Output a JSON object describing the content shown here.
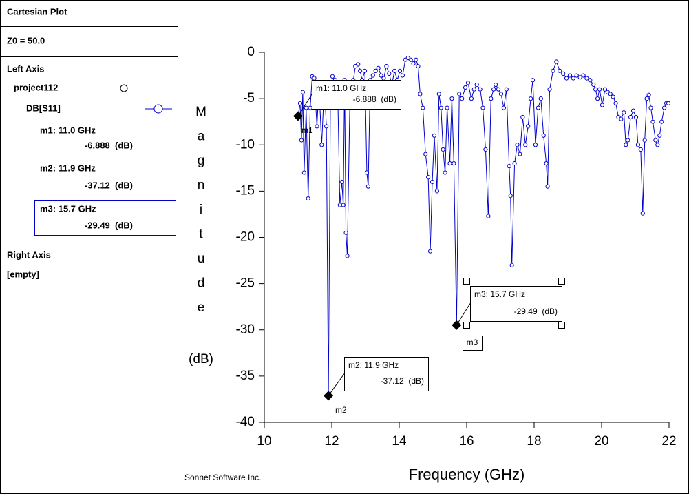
{
  "panel": {
    "title": "Cartesian Plot",
    "z0": "Z0 = 50.0",
    "left_axis": "Left Axis",
    "project": "project112",
    "trace": "DB[S11]",
    "right_axis": "Right Axis",
    "right_empty": "[empty]"
  },
  "footer": "Sonnet Software Inc.",
  "chart_data": {
    "type": "line",
    "x_label": "Frequency (GHz)",
    "y_label": "Magnitude",
    "y_unit": "(dB)",
    "xlim": [
      10,
      22
    ],
    "xticks": [
      10,
      12,
      14,
      16,
      18,
      20,
      22
    ],
    "ylim": [
      -40,
      0
    ],
    "yticks": [
      0,
      -5,
      -10,
      -15,
      -20,
      -25,
      -30,
      -35,
      -40
    ],
    "series": [
      {
        "name": "DB[S11]",
        "color": "#0000cc",
        "x": [
          11.0,
          11.06,
          11.1,
          11.14,
          11.18,
          11.24,
          11.3,
          11.36,
          11.42,
          11.48,
          11.56,
          11.62,
          11.7,
          11.78,
          11.84,
          11.9,
          11.96,
          12.02,
          12.1,
          12.18,
          12.24,
          12.3,
          12.34,
          12.38,
          12.42,
          12.46,
          12.54,
          12.64,
          12.7,
          12.78,
          12.84,
          12.9,
          12.98,
          13.04,
          13.08,
          13.14,
          13.22,
          13.3,
          13.38,
          13.46,
          13.54,
          13.62,
          13.7,
          13.78,
          13.86,
          13.94,
          14.02,
          14.1,
          14.18,
          14.26,
          14.34,
          14.42,
          14.5,
          14.56,
          14.62,
          14.7,
          14.78,
          14.86,
          14.92,
          14.98,
          15.04,
          15.12,
          15.18,
          15.24,
          15.3,
          15.36,
          15.42,
          15.5,
          15.56,
          15.62,
          15.7,
          15.78,
          15.86,
          15.96,
          16.04,
          16.14,
          16.22,
          16.3,
          16.4,
          16.48,
          16.56,
          16.64,
          16.72,
          16.8,
          16.86,
          16.94,
          17.02,
          17.1,
          17.18,
          17.26,
          17.3,
          17.34,
          17.42,
          17.5,
          17.58,
          17.66,
          17.74,
          17.82,
          17.9,
          17.96,
          18.04,
          18.12,
          18.2,
          18.28,
          18.36,
          18.4,
          18.46,
          18.56,
          18.66,
          18.76,
          18.86,
          18.96,
          19.06,
          19.16,
          19.26,
          19.36,
          19.46,
          19.56,
          19.66,
          19.76,
          19.82,
          19.88,
          19.94,
          20.02,
          20.1,
          20.18,
          20.26,
          20.34,
          20.42,
          20.5,
          20.58,
          20.66,
          20.72,
          20.78,
          20.86,
          20.94,
          21.02,
          21.08,
          21.16,
          21.22,
          21.28,
          21.34,
          21.4,
          21.46,
          21.52,
          21.6,
          21.66,
          21.72,
          21.78,
          21.86,
          21.92,
          21.98
        ],
        "values": [
          -6.888,
          -5.5,
          -9.5,
          -4.3,
          -13,
          -6,
          -15.8,
          -6,
          -2.6,
          -2.8,
          -8,
          -3.5,
          -10,
          -3.5,
          -8,
          -37.12,
          -5,
          -2.6,
          -3,
          -5,
          -16.5,
          -14,
          -16.5,
          -3,
          -19.5,
          -22,
          -4.5,
          -3,
          -1.5,
          -1.3,
          -2,
          -3,
          -2,
          -13,
          -14.5,
          -3,
          -2.5,
          -2,
          -1.7,
          -2.5,
          -2.8,
          -1.5,
          -2.3,
          -3.5,
          -2,
          -3,
          -2,
          -2.5,
          -0.8,
          -0.6,
          -0.8,
          -1.2,
          -0.8,
          -1.5,
          -4.5,
          -6,
          -11,
          -13.5,
          -21.5,
          -14,
          -9,
          -15,
          -4.5,
          -6,
          -10.5,
          -13,
          -6,
          -12,
          -5,
          -12,
          -29.49,
          -4.5,
          -5,
          -3.8,
          -3.3,
          -5,
          -4,
          -3.5,
          -4,
          -6,
          -10.5,
          -17.7,
          -5,
          -4,
          -3.5,
          -4,
          -4.5,
          -6,
          -4,
          -12.3,
          -15.5,
          -23,
          -12,
          -10,
          -11,
          -7,
          -10,
          -8,
          -5,
          -3,
          -10,
          -6,
          -5,
          -9,
          -12,
          -14.5,
          -4,
          -2,
          -1,
          -2,
          -2.3,
          -2.8,
          -2.5,
          -2.8,
          -2.5,
          -2.7,
          -2.5,
          -2.8,
          -3,
          -3.5,
          -4,
          -5,
          -4,
          -5.7,
          -4,
          -4.3,
          -4.5,
          -4.8,
          -5.5,
          -7,
          -7.2,
          -6.5,
          -10,
          -9.5,
          -7,
          -6.3,
          -7,
          -10,
          -10.5,
          -17.4,
          -9.5,
          -5,
          -4.6,
          -6,
          -7.5,
          -9.5,
          -10,
          -9,
          -7.5,
          -6,
          -5.5,
          -5.5
        ]
      }
    ],
    "markers": [
      {
        "name": "m1",
        "label": "m1: 11.0 GHz",
        "value_label": "-6.888  (dB)",
        "x": 11.0,
        "y": -6.888
      },
      {
        "name": "m2",
        "label": "m2: 11.9 GHz",
        "value_label": "-37.12  (dB)",
        "x": 11.9,
        "y": -37.12
      },
      {
        "name": "m3",
        "label": "m3: 15.7 GHz",
        "value_label": "-29.49  (dB)",
        "x": 15.7,
        "y": -29.49
      }
    ]
  }
}
